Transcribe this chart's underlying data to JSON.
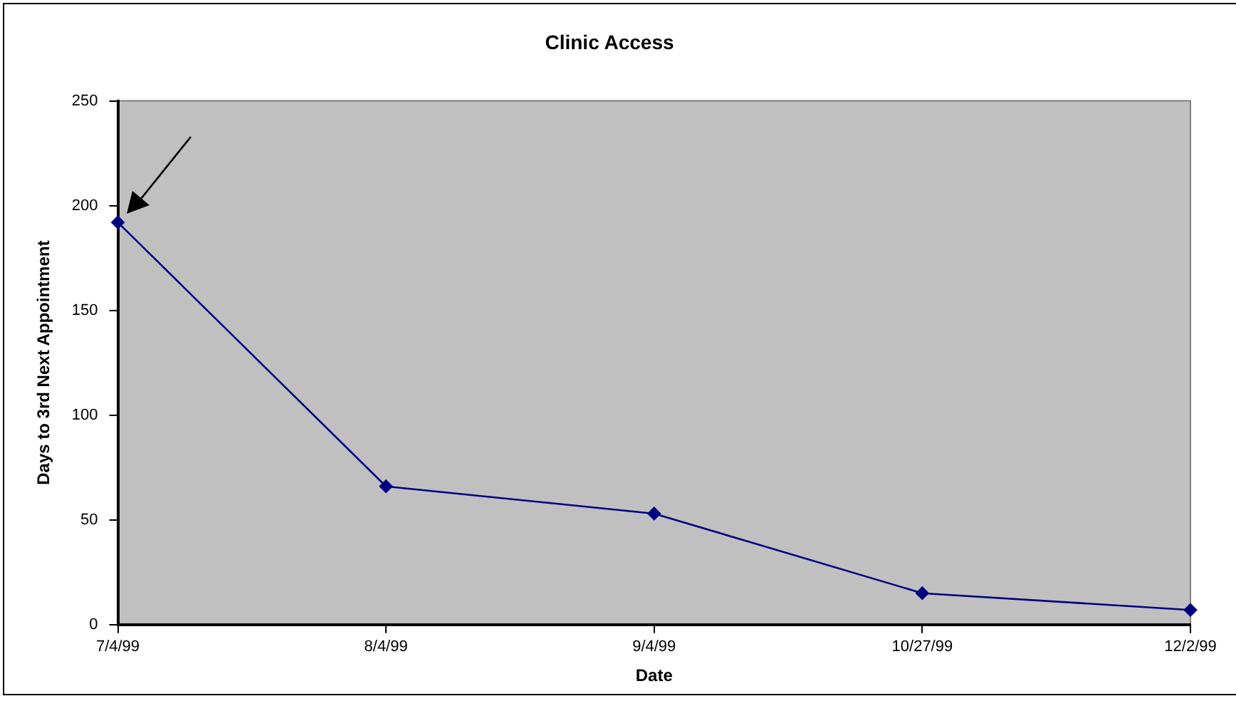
{
  "chart_data": {
    "type": "line",
    "title": "Clinic Access",
    "xlabel": "Date",
    "ylabel": "Days to 3rd Next Appointment",
    "categories": [
      "7/4/99",
      "8/4/99",
      "9/4/99",
      "10/27/99",
      "12/2/99"
    ],
    "series": [
      {
        "color": "#000080",
        "values": [
          192,
          66,
          53,
          15,
          7
        ]
      }
    ],
    "ylim": [
      0,
      250
    ],
    "yticks": [
      0,
      50,
      100,
      150,
      200,
      250
    ],
    "grid": false,
    "legend": false,
    "marker": "diamond",
    "line_style": "solid"
  }
}
